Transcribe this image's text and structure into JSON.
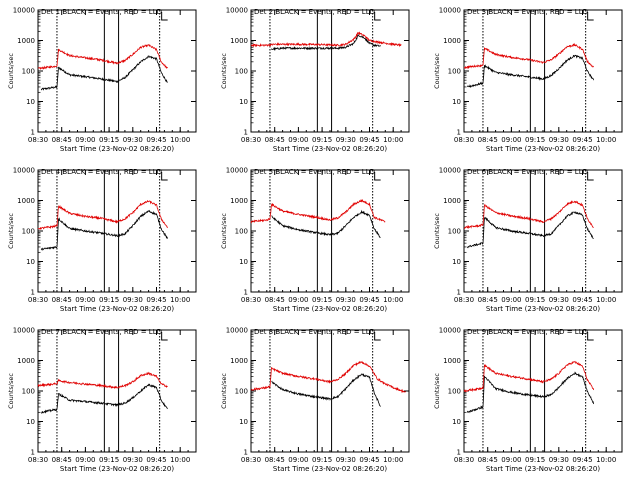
{
  "figure": {
    "background": "#ffffff",
    "axis_color": "#000000"
  },
  "chart_data": [
    {
      "type": "line",
      "title": "Det 1 BLACK = Events, RED = LLD",
      "xlabel": "Start Time (23-Nov-02 08:26:20)",
      "ylabel": "Counts/sec",
      "xlim": [
        "08:30",
        "10:10"
      ],
      "x_ticks": [
        "08:30",
        "08:45",
        "09:00",
        "09:15",
        "09:30",
        "09:45",
        "10:00"
      ],
      "y_scale": "log",
      "ylim": [
        1,
        10000
      ],
      "y_ticks": [
        "1",
        "10",
        "100",
        "1000",
        "10000"
      ],
      "vertical_markers": [
        "08:42",
        "09:12",
        "09:21",
        "09:47"
      ],
      "series": [
        {
          "name": "Events",
          "color": "#000000",
          "start": "08:32",
          "end": "09:52",
          "x": [
            "08:32",
            "08:42",
            "08:43",
            "08:50",
            "09:00",
            "09:10",
            "09:20",
            "09:25",
            "09:30",
            "09:35",
            "09:40",
            "09:45",
            "09:48",
            "09:52"
          ],
          "y": [
            25,
            30,
            130,
            75,
            65,
            55,
            45,
            60,
            110,
            200,
            300,
            250,
            90,
            40
          ]
        },
        {
          "name": "LLD",
          "color": "#e00000",
          "start": "08:30",
          "end": "09:52",
          "x": [
            "08:30",
            "08:40",
            "08:42",
            "08:43",
            "08:50",
            "09:00",
            "09:10",
            "09:20",
            "09:25",
            "09:30",
            "09:35",
            "09:40",
            "09:45",
            "09:48",
            "09:52"
          ],
          "y": [
            120,
            140,
            150,
            500,
            320,
            270,
            230,
            180,
            220,
            350,
            600,
            700,
            500,
            200,
            120
          ]
        }
      ]
    },
    {
      "type": "line",
      "title": "Det 2 BLACK = Events, RED = LLD",
      "xlabel": "Start Time (23-Nov-02 08:26:20)",
      "ylabel": "Counts/sec",
      "xlim": [
        "08:30",
        "10:10"
      ],
      "x_ticks": [
        "08:30",
        "08:45",
        "09:00",
        "09:15",
        "09:30",
        "09:45",
        "10:00"
      ],
      "y_scale": "log",
      "ylim": [
        1,
        10000
      ],
      "y_ticks": [
        "1",
        "10",
        "100",
        "1000",
        "10000"
      ],
      "vertical_markers": [
        "08:42",
        "09:12",
        "09:21",
        "09:47"
      ],
      "series": [
        {
          "name": "Events",
          "color": "#000000",
          "start": "08:43",
          "end": "09:52",
          "x": [
            "08:43",
            "08:50",
            "09:00",
            "09:10",
            "09:20",
            "09:25",
            "09:30",
            "09:35",
            "09:38",
            "09:42",
            "09:45",
            "09:48",
            "09:52"
          ],
          "y": [
            520,
            560,
            560,
            560,
            560,
            560,
            600,
            800,
            1500,
            1200,
            800,
            700,
            650
          ]
        },
        {
          "name": "LLD",
          "color": "#e00000",
          "start": "08:30",
          "end": "10:05",
          "x": [
            "08:30",
            "08:40",
            "08:45",
            "09:00",
            "09:10",
            "09:20",
            "09:25",
            "09:30",
            "09:35",
            "09:38",
            "09:42",
            "09:45",
            "09:50",
            "10:00",
            "10:05"
          ],
          "y": [
            700,
            700,
            750,
            750,
            740,
            720,
            700,
            750,
            1100,
            1800,
            1400,
            1000,
            900,
            750,
            700
          ]
        }
      ]
    },
    {
      "type": "line",
      "title": "Det 3 BLACK = Events, RED = LLD",
      "xlabel": "Start Time (23-Nov-02 08:26:20)",
      "ylabel": "Counts/sec",
      "xlim": [
        "08:30",
        "10:10"
      ],
      "x_ticks": [
        "08:30",
        "08:45",
        "09:00",
        "09:15",
        "09:30",
        "09:45",
        "10:00"
      ],
      "y_scale": "log",
      "ylim": [
        1,
        10000
      ],
      "y_ticks": [
        "1",
        "10",
        "100",
        "1000",
        "10000"
      ],
      "vertical_markers": [
        "08:42",
        "09:12",
        "09:21",
        "09:47"
      ],
      "series": [
        {
          "name": "Events",
          "color": "#000000",
          "start": "08:32",
          "end": "09:52",
          "x": [
            "08:32",
            "08:42",
            "08:43",
            "08:50",
            "09:00",
            "09:10",
            "09:20",
            "09:25",
            "09:30",
            "09:35",
            "09:40",
            "09:45",
            "09:48",
            "09:52"
          ],
          "y": [
            30,
            40,
            150,
            90,
            75,
            65,
            55,
            70,
            120,
            220,
            320,
            260,
            100,
            50
          ]
        },
        {
          "name": "LLD",
          "color": "#e00000",
          "start": "08:30",
          "end": "09:52",
          "x": [
            "08:30",
            "08:40",
            "08:42",
            "08:43",
            "08:50",
            "09:00",
            "09:10",
            "09:20",
            "09:25",
            "09:30",
            "09:35",
            "09:40",
            "09:45",
            "09:48",
            "09:52"
          ],
          "y": [
            130,
            150,
            160,
            550,
            350,
            280,
            240,
            190,
            230,
            360,
            620,
            720,
            520,
            210,
            130
          ]
        }
      ]
    },
    {
      "type": "line",
      "title": "Det 4 BLACK = Events, RED = LLD",
      "xlabel": "Start Time (23-Nov-02 08:26:20)",
      "ylabel": "Counts/sec",
      "xlim": [
        "08:30",
        "10:10"
      ],
      "x_ticks": [
        "08:30",
        "08:45",
        "09:00",
        "09:15",
        "09:30",
        "09:45",
        "10:00"
      ],
      "y_scale": "log",
      "ylim": [
        1,
        10000
      ],
      "y_ticks": [
        "1",
        "10",
        "100",
        "1000",
        "10000"
      ],
      "vertical_markers": [
        "08:42",
        "09:12",
        "09:21",
        "09:47"
      ],
      "series": [
        {
          "name": "Events",
          "color": "#000000",
          "start": "08:32",
          "end": "09:52",
          "x": [
            "08:32",
            "08:42",
            "08:43",
            "08:50",
            "09:00",
            "09:10",
            "09:20",
            "09:25",
            "09:30",
            "09:35",
            "09:40",
            "09:45",
            "09:48",
            "09:52"
          ],
          "y": [
            25,
            30,
            250,
            120,
            100,
            85,
            70,
            80,
            150,
            300,
            450,
            350,
            120,
            55
          ]
        },
        {
          "name": "LLD",
          "color": "#e00000",
          "start": "08:30",
          "end": "09:52",
          "x": [
            "08:30",
            "08:40",
            "08:42",
            "08:43",
            "08:50",
            "09:00",
            "09:10",
            "09:20",
            "09:25",
            "09:30",
            "09:35",
            "09:40",
            "09:45",
            "09:48",
            "09:52"
          ],
          "y": [
            120,
            140,
            150,
            650,
            380,
            300,
            260,
            200,
            250,
            400,
            750,
            950,
            700,
            250,
            130
          ]
        }
      ]
    },
    {
      "type": "line",
      "title": "Det 5 BLACK = Events, RED = LLD",
      "xlabel": "Start Time (23-Nov-02 08:26:20)",
      "ylabel": "Counts/sec",
      "xlim": [
        "08:30",
        "10:10"
      ],
      "x_ticks": [
        "08:30",
        "08:45",
        "09:00",
        "09:15",
        "09:30",
        "09:45",
        "10:00"
      ],
      "y_scale": "log",
      "ylim": [
        1,
        10000
      ],
      "y_ticks": [
        "1",
        "10",
        "100",
        "1000",
        "10000"
      ],
      "vertical_markers": [
        "08:42",
        "09:12",
        "09:21",
        "09:47"
      ],
      "series": [
        {
          "name": "Events",
          "color": "#000000",
          "start": "08:43",
          "end": "09:52",
          "x": [
            "08:43",
            "08:50",
            "09:00",
            "09:10",
            "09:20",
            "09:25",
            "09:30",
            "09:35",
            "09:40",
            "09:45",
            "09:48",
            "09:52"
          ],
          "y": [
            300,
            150,
            110,
            90,
            75,
            85,
            150,
            280,
            420,
            330,
            120,
            60
          ]
        },
        {
          "name": "LLD",
          "color": "#e00000",
          "start": "08:30",
          "end": "09:55",
          "x": [
            "08:30",
            "08:40",
            "08:42",
            "08:43",
            "08:50",
            "09:00",
            "09:10",
            "09:20",
            "09:25",
            "09:30",
            "09:35",
            "09:40",
            "09:45",
            "09:48",
            "09:55"
          ],
          "y": [
            200,
            230,
            250,
            750,
            450,
            350,
            290,
            230,
            270,
            420,
            750,
            1000,
            750,
            280,
            200
          ]
        }
      ]
    },
    {
      "type": "line",
      "title": "Det 6 BLACK = Events, RED = LLD",
      "xlabel": "Start Time (23-Nov-02 08:26:20)",
      "ylabel": "Counts/sec",
      "xlim": [
        "08:30",
        "10:10"
      ],
      "x_ticks": [
        "08:30",
        "08:45",
        "09:00",
        "09:15",
        "09:30",
        "09:45",
        "10:00"
      ],
      "y_scale": "log",
      "ylim": [
        1,
        10000
      ],
      "y_ticks": [
        "1",
        "10",
        "100",
        "1000",
        "10000"
      ],
      "vertical_markers": [
        "08:42",
        "09:12",
        "09:21",
        "09:47"
      ],
      "series": [
        {
          "name": "Events",
          "color": "#000000",
          "start": "08:32",
          "end": "09:52",
          "x": [
            "08:32",
            "08:42",
            "08:43",
            "08:50",
            "09:00",
            "09:10",
            "09:20",
            "09:25",
            "09:30",
            "09:35",
            "09:40",
            "09:45",
            "09:48",
            "09:52"
          ],
          "y": [
            30,
            40,
            280,
            130,
            100,
            85,
            70,
            80,
            150,
            300,
            420,
            330,
            120,
            55
          ]
        },
        {
          "name": "LLD",
          "color": "#e00000",
          "start": "08:30",
          "end": "09:52",
          "x": [
            "08:30",
            "08:40",
            "08:42",
            "08:43",
            "08:50",
            "09:00",
            "09:10",
            "09:20",
            "09:25",
            "09:30",
            "09:35",
            "09:40",
            "09:45",
            "09:48",
            "09:52"
          ],
          "y": [
            130,
            150,
            160,
            700,
            400,
            310,
            260,
            200,
            250,
            400,
            750,
            950,
            700,
            260,
            130
          ]
        }
      ]
    },
    {
      "type": "line",
      "title": "Det 7 BLACK = Events, RED = LLD",
      "xlabel": "Start Time (23-Nov-02 08:26:20)",
      "ylabel": "Counts/sec",
      "xlim": [
        "08:30",
        "10:10"
      ],
      "x_ticks": [
        "08:30",
        "08:45",
        "09:00",
        "09:15",
        "09:30",
        "09:45",
        "10:00"
      ],
      "y_scale": "log",
      "ylim": [
        1,
        10000
      ],
      "y_ticks": [
        "1",
        "10",
        "100",
        "1000",
        "10000"
      ],
      "vertical_markers": [
        "08:42",
        "09:12",
        "09:21",
        "09:47"
      ],
      "series": [
        {
          "name": "Events",
          "color": "#000000",
          "start": "08:32",
          "end": "09:52",
          "x": [
            "08:32",
            "08:42",
            "08:43",
            "08:50",
            "09:00",
            "09:10",
            "09:20",
            "09:25",
            "09:30",
            "09:35",
            "09:40",
            "09:45",
            "09:48",
            "09:52"
          ],
          "y": [
            20,
            25,
            80,
            50,
            45,
            40,
            35,
            40,
            60,
            100,
            160,
            130,
            50,
            25
          ]
        },
        {
          "name": "LLD",
          "color": "#e00000",
          "start": "08:30",
          "end": "09:52",
          "x": [
            "08:30",
            "08:40",
            "08:42",
            "08:43",
            "08:50",
            "09:00",
            "09:10",
            "09:20",
            "09:25",
            "09:30",
            "09:35",
            "09:40",
            "09:45",
            "09:48",
            "09:52"
          ],
          "y": [
            150,
            170,
            175,
            220,
            190,
            170,
            150,
            130,
            150,
            200,
            320,
            380,
            300,
            170,
            140
          ]
        }
      ]
    },
    {
      "type": "line",
      "title": "Det 8 BLACK = Events, RED = LLD",
      "xlabel": "Start Time (23-Nov-02 08:26:20)",
      "ylabel": "Counts/sec",
      "xlim": [
        "08:30",
        "10:10"
      ],
      "x_ticks": [
        "08:30",
        "08:45",
        "09:00",
        "09:15",
        "09:30",
        "09:45",
        "10:00"
      ],
      "y_scale": "log",
      "ylim": [
        1,
        10000
      ],
      "y_ticks": [
        "1",
        "10",
        "100",
        "1000",
        "10000"
      ],
      "vertical_markers": [
        "08:42",
        "09:12",
        "09:21",
        "09:47"
      ],
      "series": [
        {
          "name": "Events",
          "color": "#000000",
          "start": "08:43",
          "end": "09:52",
          "x": [
            "08:43",
            "08:50",
            "09:00",
            "09:10",
            "09:20",
            "09:25",
            "09:30",
            "09:35",
            "09:40",
            "09:45",
            "09:48",
            "09:52"
          ],
          "y": [
            200,
            110,
            80,
            65,
            55,
            65,
            120,
            230,
            350,
            280,
            90,
            30
          ]
        },
        {
          "name": "LLD",
          "color": "#e00000",
          "start": "08:30",
          "end": "10:08",
          "x": [
            "08:30",
            "08:40",
            "08:42",
            "08:43",
            "08:50",
            "09:00",
            "09:10",
            "09:20",
            "09:25",
            "09:30",
            "09:35",
            "09:40",
            "09:45",
            "09:50",
            "09:55",
            "10:00",
            "10:08"
          ],
          "y": [
            110,
            130,
            140,
            550,
            380,
            300,
            250,
            200,
            240,
            380,
            700,
            900,
            650,
            250,
            170,
            130,
            90
          ]
        }
      ]
    },
    {
      "type": "line",
      "title": "Det 9 BLACK = Events, RED = LLD",
      "xlabel": "Start Time (23-Nov-02 08:26:20)",
      "ylabel": "Counts/sec",
      "xlim": [
        "08:30",
        "10:10"
      ],
      "x_ticks": [
        "08:30",
        "08:45",
        "09:00",
        "09:15",
        "09:30",
        "09:45",
        "10:00"
      ],
      "y_scale": "log",
      "ylim": [
        1,
        10000
      ],
      "y_ticks": [
        "1",
        "10",
        "100",
        "1000",
        "10000"
      ],
      "vertical_markers": [
        "08:42",
        "09:12",
        "09:21",
        "09:47"
      ],
      "series": [
        {
          "name": "Events",
          "color": "#000000",
          "start": "08:32",
          "end": "09:52",
          "x": [
            "08:32",
            "08:42",
            "08:43",
            "08:50",
            "09:00",
            "09:10",
            "09:20",
            "09:25",
            "09:30",
            "09:35",
            "09:40",
            "09:45",
            "09:48",
            "09:52"
          ],
          "y": [
            20,
            30,
            300,
            120,
            90,
            75,
            65,
            75,
            130,
            250,
            380,
            300,
            100,
            40
          ]
        },
        {
          "name": "LLD",
          "color": "#e00000",
          "start": "08:30",
          "end": "09:52",
          "x": [
            "08:30",
            "08:40",
            "08:42",
            "08:43",
            "08:50",
            "09:00",
            "09:10",
            "09:20",
            "09:25",
            "09:30",
            "09:35",
            "09:40",
            "09:45",
            "09:48",
            "09:52"
          ],
          "y": [
            100,
            120,
            130,
            700,
            380,
            300,
            250,
            200,
            240,
            380,
            700,
            900,
            650,
            240,
            110
          ]
        }
      ]
    }
  ]
}
